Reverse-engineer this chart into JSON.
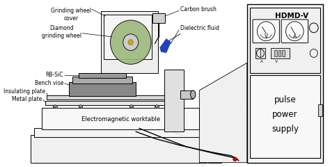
{
  "bg_color": "#ffffff",
  "line_color": "#000000",
  "green_wheel": "#9ab87a",
  "blue_arrow": "#2244bb",
  "red_dot": "#cc0000",
  "labels": {
    "grinding_wheel_cover": "Grinding wheel\ncover",
    "diamond_grinding_wheel": "Diamond\ngrinding wheel",
    "carbon_brush": "Carbon brush",
    "dielectric_fluid": "Dielectric fluid",
    "rb_sic": "RB-SiC",
    "bench_vise": "Bench vise",
    "insulating_plate": "Insulating plate",
    "metal_plate": "Metal plate",
    "em_worktable": "Electromagnetic worktable",
    "pulse_power": "pulse\npower\nsupply",
    "hdmd": "HDMD-V",
    "V": "V",
    "A": "A"
  }
}
